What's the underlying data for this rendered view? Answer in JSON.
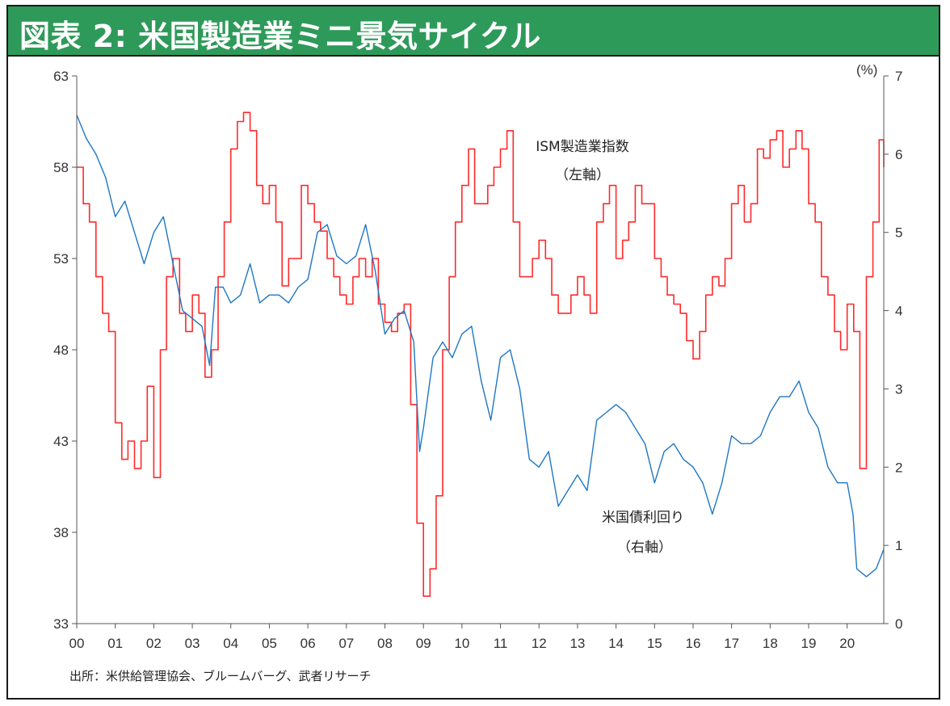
{
  "title": "図表 2: 米国製造業ミニ景気サイクル",
  "source_note": "出所：米供給管理協会、ブルームバーグ、武者リサーチ",
  "colors": {
    "title_bg": "#2e9a5a",
    "ism": "#ff2a2a",
    "yield": "#1f77c4"
  },
  "chart_data": {
    "type": "line",
    "title": "",
    "x_tick_labels": [
      "00",
      "01",
      "02",
      "03",
      "04",
      "05",
      "06",
      "07",
      "08",
      "09",
      "10",
      "11",
      "12",
      "13",
      "14",
      "15",
      "16",
      "17",
      "18",
      "19",
      "20"
    ],
    "y_left": {
      "min": 33,
      "max": 63,
      "ticks": [
        63,
        58,
        53,
        48,
        43,
        38,
        33
      ]
    },
    "y_right": {
      "min": 0,
      "max": 7,
      "ticks": [
        7,
        6,
        5,
        4,
        3,
        2,
        1,
        0
      ],
      "unit": "(%)"
    },
    "series": [
      {
        "name": "ISM製造業指数",
        "sublabel": "（左軸）",
        "axis": "left",
        "step": true,
        "points": [
          [
            2000.0,
            58
          ],
          [
            2000.17,
            56
          ],
          [
            2000.33,
            55
          ],
          [
            2000.5,
            52
          ],
          [
            2000.67,
            50
          ],
          [
            2000.83,
            49
          ],
          [
            2001.0,
            44
          ],
          [
            2001.17,
            42
          ],
          [
            2001.33,
            43
          ],
          [
            2001.5,
            41.5
          ],
          [
            2001.67,
            43
          ],
          [
            2001.83,
            46
          ],
          [
            2002.0,
            41
          ],
          [
            2002.17,
            48
          ],
          [
            2002.33,
            52
          ],
          [
            2002.5,
            53
          ],
          [
            2002.67,
            50
          ],
          [
            2002.83,
            49
          ],
          [
            2003.0,
            51
          ],
          [
            2003.17,
            50
          ],
          [
            2003.33,
            46.5
          ],
          [
            2003.5,
            48
          ],
          [
            2003.67,
            52
          ],
          [
            2003.83,
            55
          ],
          [
            2004.0,
            59
          ],
          [
            2004.17,
            60.5
          ],
          [
            2004.33,
            61
          ],
          [
            2004.5,
            60
          ],
          [
            2004.67,
            57
          ],
          [
            2004.83,
            56
          ],
          [
            2005.0,
            57
          ],
          [
            2005.17,
            55
          ],
          [
            2005.33,
            51.5
          ],
          [
            2005.5,
            53
          ],
          [
            2005.67,
            53
          ],
          [
            2005.83,
            57
          ],
          [
            2006.0,
            56
          ],
          [
            2006.17,
            55
          ],
          [
            2006.33,
            54.5
          ],
          [
            2006.5,
            53
          ],
          [
            2006.67,
            52
          ],
          [
            2006.83,
            51
          ],
          [
            2007.0,
            50.5
          ],
          [
            2007.17,
            52
          ],
          [
            2007.33,
            53
          ],
          [
            2007.5,
            52
          ],
          [
            2007.67,
            53
          ],
          [
            2007.83,
            50.5
          ],
          [
            2008.0,
            49.5
          ],
          [
            2008.17,
            49
          ],
          [
            2008.33,
            50
          ],
          [
            2008.5,
            50.5
          ],
          [
            2008.67,
            45
          ],
          [
            2008.83,
            38.5
          ],
          [
            2009.0,
            34.5
          ],
          [
            2009.17,
            36
          ],
          [
            2009.33,
            40
          ],
          [
            2009.5,
            48
          ],
          [
            2009.67,
            52
          ],
          [
            2009.83,
            55
          ],
          [
            2010.0,
            57
          ],
          [
            2010.17,
            59
          ],
          [
            2010.33,
            56
          ],
          [
            2010.5,
            56
          ],
          [
            2010.67,
            57
          ],
          [
            2010.83,
            58
          ],
          [
            2011.0,
            59
          ],
          [
            2011.17,
            60
          ],
          [
            2011.33,
            55
          ],
          [
            2011.5,
            52
          ],
          [
            2011.67,
            52
          ],
          [
            2011.83,
            53
          ],
          [
            2012.0,
            54
          ],
          [
            2012.17,
            53
          ],
          [
            2012.33,
            51
          ],
          [
            2012.5,
            50
          ],
          [
            2012.67,
            50
          ],
          [
            2012.83,
            51
          ],
          [
            2013.0,
            52
          ],
          [
            2013.17,
            51
          ],
          [
            2013.33,
            50
          ],
          [
            2013.5,
            55
          ],
          [
            2013.67,
            56
          ],
          [
            2013.83,
            57
          ],
          [
            2014.0,
            53
          ],
          [
            2014.17,
            54
          ],
          [
            2014.33,
            55
          ],
          [
            2014.5,
            57
          ],
          [
            2014.67,
            56
          ],
          [
            2014.83,
            56
          ],
          [
            2015.0,
            53
          ],
          [
            2015.17,
            52
          ],
          [
            2015.33,
            51
          ],
          [
            2015.5,
            50.5
          ],
          [
            2015.67,
            50
          ],
          [
            2015.83,
            48.5
          ],
          [
            2016.0,
            47.5
          ],
          [
            2016.17,
            49
          ],
          [
            2016.33,
            51
          ],
          [
            2016.5,
            52
          ],
          [
            2016.67,
            51.5
          ],
          [
            2016.83,
            53
          ],
          [
            2017.0,
            56
          ],
          [
            2017.17,
            57
          ],
          [
            2017.33,
            55
          ],
          [
            2017.5,
            56
          ],
          [
            2017.67,
            59
          ],
          [
            2017.83,
            58.5
          ],
          [
            2018.0,
            59.5
          ],
          [
            2018.17,
            60
          ],
          [
            2018.33,
            58
          ],
          [
            2018.5,
            59
          ],
          [
            2018.67,
            60
          ],
          [
            2018.83,
            59
          ],
          [
            2019.0,
            56
          ],
          [
            2019.17,
            55
          ],
          [
            2019.33,
            52
          ],
          [
            2019.5,
            51
          ],
          [
            2019.67,
            49
          ],
          [
            2019.83,
            48
          ],
          [
            2020.0,
            50.5
          ],
          [
            2020.17,
            49
          ],
          [
            2020.33,
            41.5
          ],
          [
            2020.5,
            52
          ],
          [
            2020.67,
            55
          ],
          [
            2020.83,
            59.5
          ],
          [
            2020.95,
            58
          ]
        ]
      },
      {
        "name": "米国債利回り",
        "sublabel": "（右軸）",
        "axis": "right",
        "step": false,
        "points": [
          [
            2000.0,
            6.5
          ],
          [
            2000.25,
            6.2
          ],
          [
            2000.5,
            6.0
          ],
          [
            2000.75,
            5.7
          ],
          [
            2001.0,
            5.2
          ],
          [
            2001.25,
            5.4
          ],
          [
            2001.5,
            5.0
          ],
          [
            2001.75,
            4.6
          ],
          [
            2002.0,
            5.0
          ],
          [
            2002.25,
            5.2
          ],
          [
            2002.5,
            4.6
          ],
          [
            2002.75,
            4.0
          ],
          [
            2003.0,
            3.9
          ],
          [
            2003.25,
            3.8
          ],
          [
            2003.45,
            3.3
          ],
          [
            2003.6,
            4.3
          ],
          [
            2003.8,
            4.3
          ],
          [
            2004.0,
            4.1
          ],
          [
            2004.25,
            4.2
          ],
          [
            2004.5,
            4.6
          ],
          [
            2004.75,
            4.1
          ],
          [
            2005.0,
            4.2
          ],
          [
            2005.25,
            4.2
          ],
          [
            2005.5,
            4.1
          ],
          [
            2005.75,
            4.3
          ],
          [
            2006.0,
            4.4
          ],
          [
            2006.25,
            5.0
          ],
          [
            2006.5,
            5.1
          ],
          [
            2006.75,
            4.7
          ],
          [
            2007.0,
            4.6
          ],
          [
            2007.25,
            4.7
          ],
          [
            2007.5,
            5.1
          ],
          [
            2007.75,
            4.5
          ],
          [
            2008.0,
            3.7
          ],
          [
            2008.25,
            3.9
          ],
          [
            2008.5,
            4.0
          ],
          [
            2008.75,
            3.6
          ],
          [
            2008.9,
            2.2
          ],
          [
            2009.0,
            2.5
          ],
          [
            2009.25,
            3.4
          ],
          [
            2009.5,
            3.6
          ],
          [
            2009.75,
            3.4
          ],
          [
            2010.0,
            3.7
          ],
          [
            2010.25,
            3.8
          ],
          [
            2010.5,
            3.1
          ],
          [
            2010.75,
            2.6
          ],
          [
            2011.0,
            3.4
          ],
          [
            2011.25,
            3.5
          ],
          [
            2011.5,
            3.0
          ],
          [
            2011.75,
            2.1
          ],
          [
            2012.0,
            2.0
          ],
          [
            2012.25,
            2.2
          ],
          [
            2012.5,
            1.5
          ],
          [
            2012.75,
            1.7
          ],
          [
            2013.0,
            1.9
          ],
          [
            2013.25,
            1.7
          ],
          [
            2013.5,
            2.6
          ],
          [
            2013.75,
            2.7
          ],
          [
            2014.0,
            2.8
          ],
          [
            2014.25,
            2.7
          ],
          [
            2014.5,
            2.5
          ],
          [
            2014.75,
            2.3
          ],
          [
            2015.0,
            1.8
          ],
          [
            2015.25,
            2.2
          ],
          [
            2015.5,
            2.3
          ],
          [
            2015.75,
            2.1
          ],
          [
            2016.0,
            2.0
          ],
          [
            2016.25,
            1.8
          ],
          [
            2016.5,
            1.4
          ],
          [
            2016.75,
            1.8
          ],
          [
            2017.0,
            2.4
          ],
          [
            2017.25,
            2.3
          ],
          [
            2017.5,
            2.3
          ],
          [
            2017.75,
            2.4
          ],
          [
            2018.0,
            2.7
          ],
          [
            2018.25,
            2.9
          ],
          [
            2018.5,
            2.9
          ],
          [
            2018.75,
            3.1
          ],
          [
            2019.0,
            2.7
          ],
          [
            2019.25,
            2.5
          ],
          [
            2019.5,
            2.0
          ],
          [
            2019.75,
            1.8
          ],
          [
            2020.0,
            1.8
          ],
          [
            2020.15,
            1.4
          ],
          [
            2020.25,
            0.7
          ],
          [
            2020.5,
            0.6
          ],
          [
            2020.75,
            0.7
          ],
          [
            2020.95,
            0.95
          ]
        ]
      }
    ]
  }
}
